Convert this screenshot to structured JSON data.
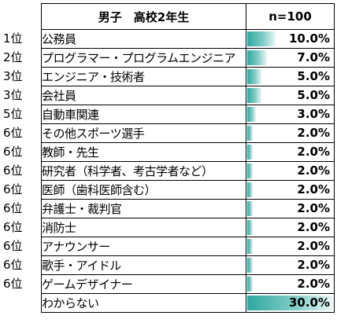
{
  "table": {
    "header_group": "男子　高校2年生",
    "header_value": "n=100"
  },
  "chart_data": {
    "type": "table",
    "title": "男子　高校2年生",
    "n_label": "n=100",
    "unit": "%",
    "bar_max": 30.0,
    "rows": [
      {
        "rank": "1位",
        "label": "公務員",
        "value": 10.0,
        "display": "10.0%"
      },
      {
        "rank": "2位",
        "label": "プログラマー・プログラムエンジニア",
        "value": 7.0,
        "display": "7.0%"
      },
      {
        "rank": "3位",
        "label": "エンジニア・技術者",
        "value": 5.0,
        "display": "5.0%"
      },
      {
        "rank": "3位",
        "label": "会社員",
        "value": 5.0,
        "display": "5.0%"
      },
      {
        "rank": "5位",
        "label": "自動車関連",
        "value": 3.0,
        "display": "3.0%"
      },
      {
        "rank": "6位",
        "label": "その他スポーツ選手",
        "value": 2.0,
        "display": "2.0%"
      },
      {
        "rank": "6位",
        "label": "教師・先生",
        "value": 2.0,
        "display": "2.0%"
      },
      {
        "rank": "6位",
        "label": "研究者（科学者、考古学者など）",
        "value": 2.0,
        "display": "2.0%"
      },
      {
        "rank": "6位",
        "label": "医師（歯科医師含む）",
        "value": 2.0,
        "display": "2.0%"
      },
      {
        "rank": "6位",
        "label": "弁護士・裁判官",
        "value": 2.0,
        "display": "2.0%"
      },
      {
        "rank": "6位",
        "label": "消防士",
        "value": 2.0,
        "display": "2.0%"
      },
      {
        "rank": "6位",
        "label": "アナウンサー",
        "value": 2.0,
        "display": "2.0%"
      },
      {
        "rank": "6位",
        "label": "歌手・アイドル",
        "value": 2.0,
        "display": "2.0%"
      },
      {
        "rank": "6位",
        "label": "ゲームデザイナー",
        "value": 2.0,
        "display": "2.0%"
      },
      {
        "rank": "",
        "label": "わからない",
        "value": 30.0,
        "display": "30.0%"
      }
    ],
    "bar_color": "#2fa8a0"
  }
}
